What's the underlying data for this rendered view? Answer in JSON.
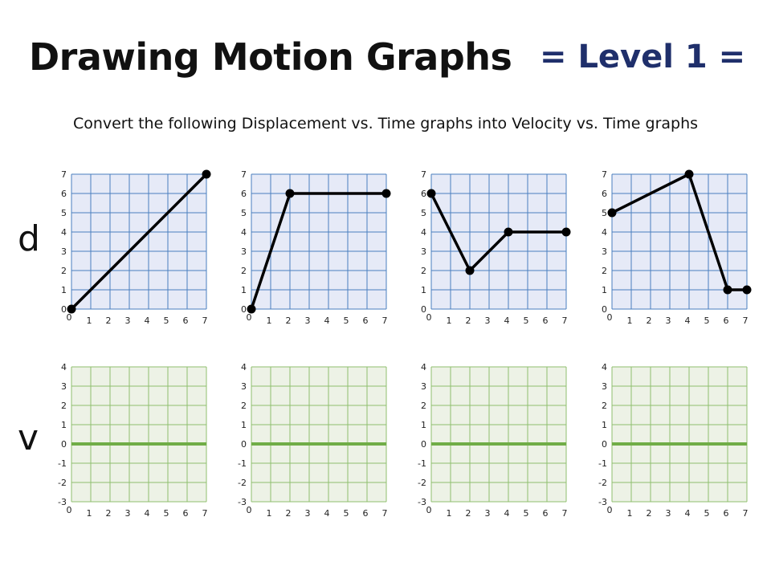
{
  "header": {
    "title": "Drawing Motion Graphs",
    "level": "= Level 1 =",
    "instructions": "Convert the following Displacement vs. Time graphs into Velocity vs. Time graphs"
  },
  "row_labels": {
    "displacement": "d",
    "velocity": "v"
  },
  "colors": {
    "d_grid_fill": "#e6eaf7",
    "d_grid_line": "#4a7fbf",
    "v_grid_fill": "#edf2e6",
    "v_grid_line": "#8fbf6e",
    "v_zero_line": "#70ad47",
    "d_curve": "#000000"
  },
  "chart_data": [
    {
      "type": "line",
      "row": "d",
      "x_ticks": [
        0,
        1,
        2,
        3,
        4,
        5,
        6,
        7
      ],
      "y_ticks": [
        0,
        1,
        2,
        3,
        4,
        5,
        6,
        7
      ],
      "xlim": [
        0,
        7
      ],
      "ylim": [
        0,
        7
      ],
      "points": [
        [
          0,
          0
        ],
        [
          7,
          7
        ]
      ],
      "grid": true
    },
    {
      "type": "line",
      "row": "d",
      "x_ticks": [
        0,
        1,
        2,
        3,
        4,
        5,
        6,
        7
      ],
      "y_ticks": [
        0,
        1,
        2,
        3,
        4,
        5,
        6,
        7
      ],
      "xlim": [
        0,
        7
      ],
      "ylim": [
        0,
        7
      ],
      "points": [
        [
          0,
          0
        ],
        [
          2,
          6
        ],
        [
          7,
          6
        ]
      ],
      "grid": true
    },
    {
      "type": "line",
      "row": "d",
      "x_ticks": [
        0,
        1,
        2,
        3,
        4,
        5,
        6,
        7
      ],
      "y_ticks": [
        0,
        1,
        2,
        3,
        4,
        5,
        6,
        7
      ],
      "xlim": [
        0,
        7
      ],
      "ylim": [
        0,
        7
      ],
      "points": [
        [
          0,
          6
        ],
        [
          2,
          2
        ],
        [
          4,
          4
        ],
        [
          7,
          4
        ]
      ],
      "grid": true
    },
    {
      "type": "line",
      "row": "d",
      "x_ticks": [
        0,
        1,
        2,
        3,
        4,
        5,
        6,
        7
      ],
      "y_ticks": [
        0,
        1,
        2,
        3,
        4,
        5,
        6,
        7
      ],
      "xlim": [
        0,
        7
      ],
      "ylim": [
        0,
        7
      ],
      "points": [
        [
          0,
          5
        ],
        [
          4,
          7
        ],
        [
          6,
          1
        ],
        [
          7,
          1
        ]
      ],
      "grid": true
    },
    {
      "type": "line",
      "row": "v",
      "x_ticks": [
        0,
        1,
        2,
        3,
        4,
        5,
        6,
        7
      ],
      "y_ticks": [
        -3,
        -2,
        -1,
        0,
        1,
        2,
        3,
        4
      ],
      "xlim": [
        0,
        7
      ],
      "ylim": [
        -3,
        4
      ],
      "points": [],
      "grid": true
    },
    {
      "type": "line",
      "row": "v",
      "x_ticks": [
        0,
        1,
        2,
        3,
        4,
        5,
        6,
        7
      ],
      "y_ticks": [
        -3,
        -2,
        -1,
        0,
        1,
        2,
        3,
        4
      ],
      "xlim": [
        0,
        7
      ],
      "ylim": [
        -3,
        4
      ],
      "points": [],
      "grid": true
    },
    {
      "type": "line",
      "row": "v",
      "x_ticks": [
        0,
        1,
        2,
        3,
        4,
        5,
        6,
        7
      ],
      "y_ticks": [
        -3,
        -2,
        -1,
        0,
        1,
        2,
        3,
        4
      ],
      "xlim": [
        0,
        7
      ],
      "ylim": [
        -3,
        4
      ],
      "points": [],
      "grid": true
    },
    {
      "type": "line",
      "row": "v",
      "x_ticks": [
        0,
        1,
        2,
        3,
        4,
        5,
        6,
        7
      ],
      "y_ticks": [
        -3,
        -2,
        -1,
        0,
        1,
        2,
        3,
        4
      ],
      "xlim": [
        0,
        7
      ],
      "ylim": [
        -3,
        4
      ],
      "points": [],
      "grid": true
    }
  ]
}
